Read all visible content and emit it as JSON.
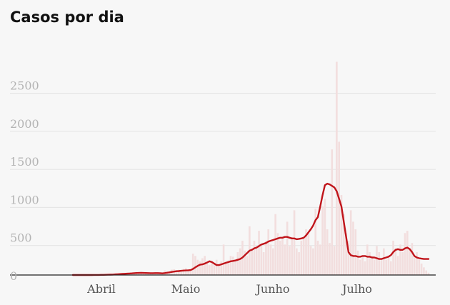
{
  "title": "Casos por dia",
  "chart_data": {
    "type": "bar",
    "title": "Casos por dia",
    "xlabel": "",
    "ylabel": "",
    "ylim": [
      0,
      2700
    ],
    "yticks": [
      0,
      500,
      1000,
      1500,
      2000,
      2500
    ],
    "month_labels": [
      "Abril",
      "Maio",
      "Junho",
      "Julho"
    ],
    "grid": true,
    "series": [
      {
        "type": "bar",
        "values": [
          0,
          0,
          0,
          0,
          0,
          0,
          0,
          1,
          0,
          0,
          2,
          1,
          3,
          2,
          5,
          4,
          8,
          6,
          10,
          12,
          15,
          18,
          20,
          25,
          22,
          30,
          28,
          35,
          25,
          20,
          30,
          28,
          22,
          18,
          25,
          30,
          25,
          15,
          20,
          60,
          45,
          30,
          70,
          75,
          65,
          70,
          55,
          80,
          90,
          75,
          60,
          280,
          250,
          200,
          180,
          220,
          250,
          170,
          130,
          180,
          150,
          200,
          120,
          180,
          400,
          180,
          190,
          250,
          240,
          200,
          300,
          350,
          450,
          320,
          250,
          640,
          350,
          450,
          380,
          580,
          390,
          300,
          450,
          600,
          400,
          350,
          800,
          550,
          450,
          480,
          400,
          700,
          380,
          500,
          850,
          350,
          300,
          450,
          500,
          600,
          550,
          380,
          350,
          870,
          450,
          400,
          900,
          1000,
          600,
          420,
          1650,
          380,
          2800,
          1750,
          1050,
          800,
          550,
          450,
          850,
          700,
          600,
          320,
          200,
          250,
          180,
          400,
          300,
          250,
          200,
          380,
          300,
          220,
          350,
          200,
          250,
          180,
          450,
          350,
          250,
          400,
          300,
          550,
          580,
          350,
          420,
          250,
          300,
          200,
          150,
          100,
          60,
          30
        ]
      },
      {
        "type": "line",
        "values": [
          0,
          0,
          0,
          0,
          0,
          0,
          0,
          0,
          0,
          1,
          1,
          1,
          2,
          2,
          3,
          4,
          5,
          6,
          8,
          10,
          12,
          14,
          16,
          18,
          20,
          22,
          24,
          26,
          27,
          28,
          27,
          26,
          25,
          24,
          24,
          25,
          25,
          24,
          22,
          25,
          30,
          35,
          40,
          45,
          50,
          52,
          55,
          58,
          60,
          62,
          65,
          80,
          100,
          120,
          135,
          140,
          150,
          165,
          180,
          170,
          150,
          130,
          130,
          140,
          150,
          160,
          170,
          180,
          185,
          190,
          200,
          210,
          230,
          260,
          290,
          320,
          330,
          350,
          360,
          380,
          400,
          410,
          420,
          440,
          450,
          460,
          470,
          480,
          490,
          490,
          500,
          500,
          490,
          480,
          480,
          470,
          475,
          480,
          490,
          520,
          560,
          600,
          650,
          720,
          760,
          900,
          1050,
          1180,
          1200,
          1190,
          1170,
          1150,
          1100,
          1000,
          900,
          700,
          500,
          300,
          260,
          250,
          250,
          240,
          240,
          250,
          250,
          240,
          240,
          230,
          230,
          220,
          210,
          210,
          220,
          230,
          240,
          260,
          300,
          330,
          340,
          330,
          330,
          350,
          360,
          340,
          300,
          250,
          230,
          220,
          215,
          210,
          210,
          210
        ]
      }
    ]
  }
}
